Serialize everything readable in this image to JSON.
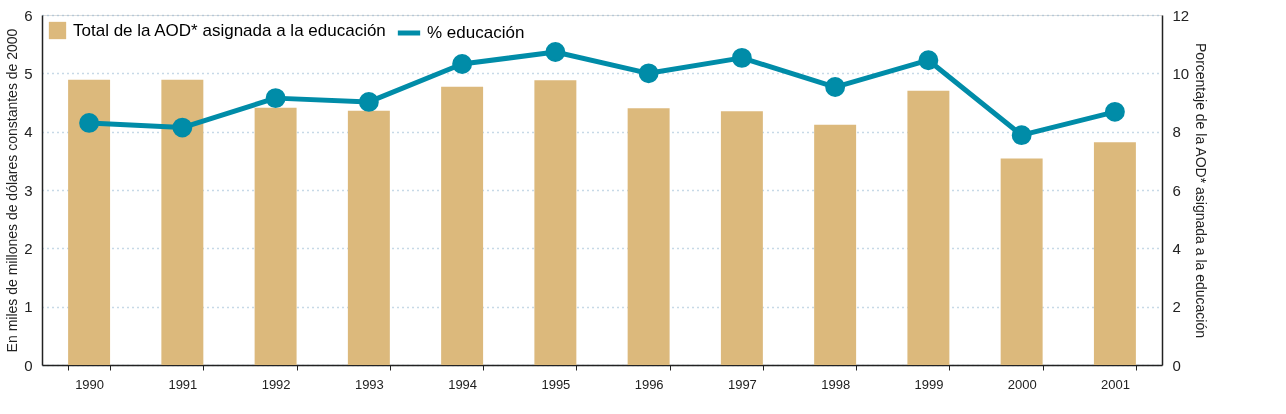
{
  "chart_data": {
    "type": "bar",
    "ylabel": "En miles de millones de dólares constantes de 2000",
    "y2label": "Porcentaje de la AOD* asignada a la educación",
    "categories": [
      "1990",
      "1991",
      "1992",
      "1993",
      "1994",
      "1995",
      "1996",
      "1997",
      "1998",
      "1999",
      "2000",
      "2001"
    ],
    "series": [
      {
        "name": "Total de la AOD* asignada a la educación",
        "color": "#dcb97c",
        "values": [
          4.89,
          4.89,
          4.41,
          4.36,
          4.77,
          4.88,
          4.4,
          4.35,
          4.12,
          4.7,
          3.54,
          3.82
        ]
      },
      {
        "name": "% educación",
        "type": "line",
        "axis": "y2",
        "color": "#008ca8",
        "values": [
          8.3,
          8.14,
          9.15,
          9.02,
          10.32,
          10.73,
          10.0,
          10.53,
          9.53,
          10.45,
          7.88,
          8.68
        ]
      }
    ],
    "ylim": [
      0,
      6
    ],
    "yticks": [
      0,
      1,
      2,
      3,
      4,
      5,
      6
    ],
    "y2lim": [
      0,
      12
    ],
    "y2ticks": [
      0,
      2,
      4,
      6,
      8,
      10,
      12
    ],
    "grid": "y",
    "legend": "top left",
    "marker": "circle"
  }
}
